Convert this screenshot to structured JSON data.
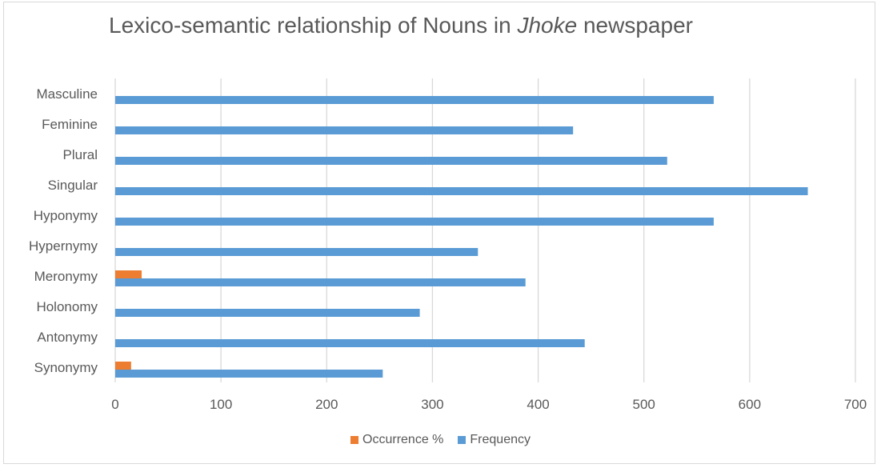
{
  "chart_data": {
    "type": "bar",
    "orientation": "horizontal",
    "title_prefix": "Lexico-semantic relationship of Nouns in ",
    "title_emphasis": "Jhoke",
    "title_suffix": " newspaper",
    "categories": [
      "Masculine",
      "Feminine",
      "Plural",
      "Singular",
      "Hyponymy",
      "Hypernymy",
      "Meronymy",
      "Holonomy",
      "Antonymy",
      "Synonymy"
    ],
    "series": [
      {
        "name": "Occurrence %",
        "color": "#ed7d31",
        "values": [
          0,
          0,
          0,
          0,
          0,
          0,
          25,
          0,
          0,
          15
        ]
      },
      {
        "name": "Frequency",
        "color": "#5b9bd5",
        "values": [
          566,
          433,
          522,
          655,
          566,
          343,
          388,
          288,
          444,
          253
        ]
      }
    ],
    "xlim": [
      0,
      700
    ],
    "x_ticks": [
      "0",
      "100",
      "200",
      "300",
      "400",
      "500",
      "600",
      "700"
    ],
    "grid": true,
    "legend_position": "bottom"
  }
}
